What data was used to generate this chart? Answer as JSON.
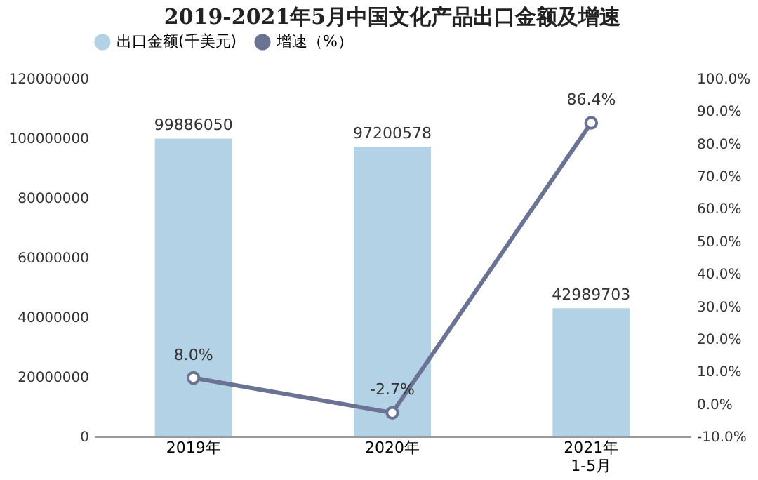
{
  "chart_data": {
    "type": "bar",
    "title": "2019-2021年5月中国文化产品出口金额及增速",
    "categories": [
      "2019年",
      "2020年",
      "2021年\n1-5月"
    ],
    "series": [
      {
        "name": "出口金额(千美元)",
        "type": "bar",
        "color": "#b4d2e6",
        "values": [
          99886050,
          97200578,
          42989703
        ],
        "value_labels": [
          "99886050",
          "97200578",
          "42989703"
        ]
      },
      {
        "name": "增速（%）",
        "type": "line",
        "axis": "y2",
        "color": "#6b7394",
        "marker": "circle",
        "values": [
          8.0,
          -2.7,
          86.4
        ],
        "value_labels": [
          "8.0%",
          "-2.7%",
          "86.4%"
        ]
      }
    ],
    "ylim": [
      0,
      120000000
    ],
    "yticks": [
      0,
      20000000,
      40000000,
      60000000,
      80000000,
      100000000,
      120000000
    ],
    "y2lim": [
      -10,
      100
    ],
    "y2ticks": [
      {
        "value": -10,
        "label": "-10.0%"
      },
      {
        "value": 0,
        "label": "0.0%"
      },
      {
        "value": 10,
        "label": "10.0%"
      },
      {
        "value": 20,
        "label": "20.0%"
      },
      {
        "value": 30,
        "label": "30.0%"
      },
      {
        "value": 40,
        "label": "40.0%"
      },
      {
        "value": 50,
        "label": "50.0%"
      },
      {
        "value": 60,
        "label": "60.0%"
      },
      {
        "value": 70,
        "label": "70.0%"
      },
      {
        "value": 80,
        "label": "80.0%"
      },
      {
        "value": 90,
        "label": "90.0%"
      },
      {
        "value": 100,
        "label": "100.0%"
      }
    ],
    "legend": "top",
    "grid": false
  }
}
